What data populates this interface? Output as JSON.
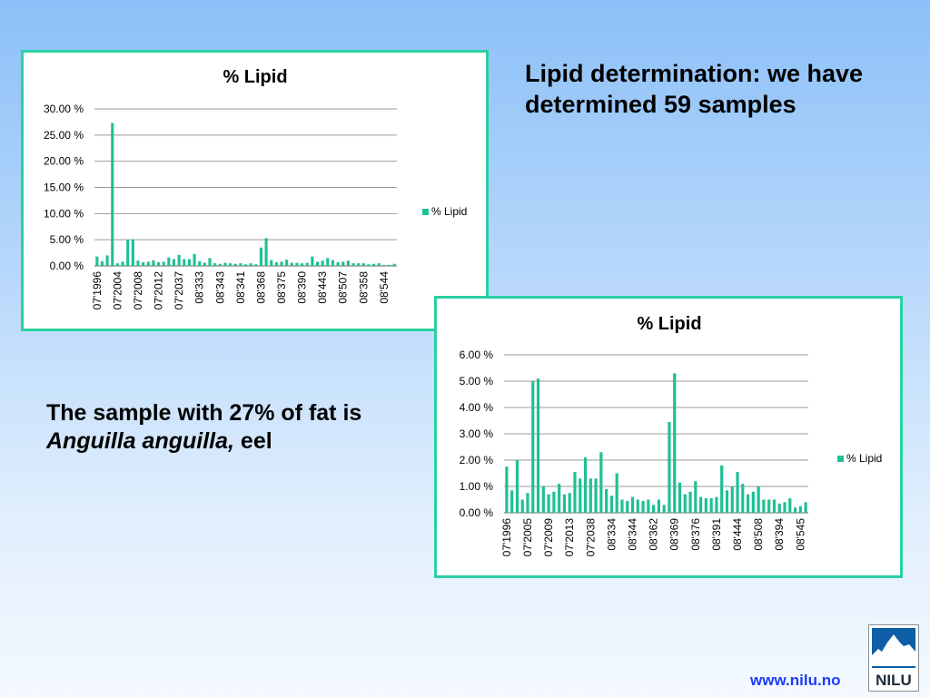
{
  "slide": {
    "heading": "Lipid determination: we have determined 59 samples",
    "note_prefix": "The sample with 27% of fat is ",
    "note_species": "Anguilla anguilla,",
    "note_suffix": " eel",
    "url": "www.nilu.no",
    "logo_text": "NILU"
  },
  "colors": {
    "series": "#1fbf95",
    "frame": "#2bd0a2",
    "url": "#1a3cff",
    "logo": "#0e5ea8"
  },
  "chart_data": [
    {
      "type": "bar",
      "title": "% Lipid",
      "legend": "right",
      "grid": true,
      "ylim": [
        0,
        30
      ],
      "yticks": [
        "0.00 %",
        "5.00 %",
        "10.00 %",
        "15.00 %",
        "20.00 %",
        "25.00 %",
        "30.00 %"
      ],
      "xtick_labels": [
        "07'1996",
        "07'2004",
        "07'2008",
        "07'2012",
        "07'2037",
        "08'333",
        "08'343",
        "08'341",
        "08'368",
        "08'375",
        "08'390",
        "08'443",
        "08'507",
        "08'358",
        "08'544"
      ],
      "series": [
        {
          "name": "% Lipid",
          "values": [
            1.8,
            0.9,
            2.0,
            27.3,
            0.5,
            0.8,
            5.0,
            5.1,
            1.0,
            0.7,
            0.8,
            1.1,
            0.7,
            0.8,
            1.6,
            1.3,
            2.1,
            1.3,
            1.3,
            2.3,
            0.9,
            0.6,
            1.5,
            0.5,
            0.4,
            0.6,
            0.5,
            0.4,
            0.5,
            0.3,
            0.5,
            0.3,
            3.5,
            5.3,
            1.1,
            0.7,
            0.8,
            1.2,
            0.6,
            0.6,
            0.5,
            0.6,
            1.8,
            0.8,
            1.0,
            1.5,
            1.1,
            0.7,
            0.8,
            1.0,
            0.5,
            0.5,
            0.5,
            0.3,
            0.4,
            0.5,
            0.2,
            0.2,
            0.4
          ]
        }
      ]
    },
    {
      "type": "bar",
      "title": "% Lipid",
      "legend": "right",
      "grid": true,
      "ylim": [
        0,
        6
      ],
      "yticks": [
        "0.00 %",
        "1.00 %",
        "2.00 %",
        "3.00 %",
        "4.00 %",
        "5.00 %",
        "6.00 %"
      ],
      "xtick_labels": [
        "07'1996",
        "07'2005",
        "07'2009",
        "07'2013",
        "07'2038",
        "08'334",
        "08'344",
        "08'362",
        "08'369",
        "08'376",
        "08'391",
        "08'444",
        "08'508",
        "08'394",
        "08'545"
      ],
      "series": [
        {
          "name": "% Lipid",
          "values": [
            1.75,
            0.85,
            2.0,
            0.5,
            0.75,
            5.0,
            5.1,
            1.0,
            0.7,
            0.8,
            1.1,
            0.7,
            0.75,
            1.55,
            1.3,
            2.1,
            1.3,
            1.3,
            2.3,
            0.9,
            0.65,
            1.5,
            0.5,
            0.45,
            0.6,
            0.5,
            0.45,
            0.5,
            0.3,
            0.5,
            0.3,
            3.45,
            5.3,
            1.15,
            0.7,
            0.8,
            1.2,
            0.6,
            0.55,
            0.55,
            0.6,
            1.8,
            0.85,
            1.0,
            1.55,
            1.1,
            0.7,
            0.8,
            1.0,
            0.5,
            0.5,
            0.5,
            0.35,
            0.4,
            0.55,
            0.2,
            0.25,
            0.4
          ]
        }
      ]
    }
  ]
}
